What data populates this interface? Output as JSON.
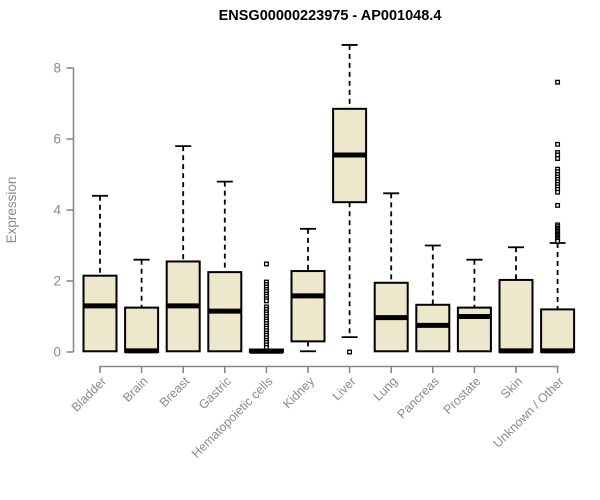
{
  "page": {
    "title": "ENSG00000223975 - AP001048.4"
  },
  "colors": {
    "background": "#FFFFFF",
    "box_fill": "#EDE8CC",
    "box_stroke": "#000000",
    "median_color": "#000000",
    "whisker_color": "#000000",
    "outlier_stroke": "#000000",
    "outlier_fill": "#FFFFFF",
    "axis_color": "#8A8A8A",
    "tick_label_color": "#8A8A8A",
    "title_color": "#000000"
  },
  "chart_data": {
    "type": "boxplot",
    "title": "ENSG00000223975 - AP001048.4",
    "xlabel": "",
    "ylabel": "Expression",
    "ylim": [
      0,
      8
    ],
    "yticks": [
      0,
      2,
      4,
      6,
      8
    ],
    "grid": false,
    "legend": false,
    "categories": [
      {
        "label": "Bladder",
        "q1": 0.02,
        "median": 1.3,
        "q3": 2.15,
        "whisker_low": 0.02,
        "whisker_high": 4.4,
        "outliers": []
      },
      {
        "label": "Brain",
        "q1": 0.0,
        "median": 0.03,
        "q3": 1.25,
        "whisker_low": 0.0,
        "whisker_high": 2.6,
        "outliers": []
      },
      {
        "label": "Breast",
        "q1": 0.02,
        "median": 1.3,
        "q3": 2.55,
        "whisker_low": 0.02,
        "whisker_high": 5.8,
        "outliers": []
      },
      {
        "label": "Gastric",
        "q1": 0.02,
        "median": 1.15,
        "q3": 2.25,
        "whisker_low": 0.02,
        "whisker_high": 4.8,
        "outliers": []
      },
      {
        "label": "Hematopoietic cells",
        "q1": 0.0,
        "median": 0.02,
        "q3": 0.07,
        "whisker_low": 0.0,
        "whisker_high": 0.07,
        "outliers": [
          2.48,
          1.97,
          1.9,
          1.83,
          1.76,
          1.7,
          1.63,
          1.57,
          1.5,
          1.44,
          1.27,
          1.2,
          1.13,
          1.07,
          1.0,
          0.93,
          0.87,
          0.8,
          0.73,
          0.67,
          0.6,
          0.53,
          0.47,
          0.4,
          0.33,
          0.27,
          0.2,
          0.13
        ]
      },
      {
        "label": "Kidney",
        "q1": 0.3,
        "median": 1.58,
        "q3": 2.28,
        "whisker_low": 0.02,
        "whisker_high": 3.47,
        "outliers": []
      },
      {
        "label": "Liver",
        "q1": 4.22,
        "median": 5.55,
        "q3": 6.85,
        "whisker_low": 0.42,
        "whisker_high": 8.65,
        "outliers": [
          0.0
        ]
      },
      {
        "label": "Lung",
        "q1": 0.02,
        "median": 0.97,
        "q3": 1.95,
        "whisker_low": 0.02,
        "whisker_high": 4.47,
        "outliers": []
      },
      {
        "label": "Pancreas",
        "q1": 0.02,
        "median": 0.75,
        "q3": 1.33,
        "whisker_low": 0.02,
        "whisker_high": 3.0,
        "outliers": []
      },
      {
        "label": "Prostate",
        "q1": 0.02,
        "median": 1.0,
        "q3": 1.25,
        "whisker_low": 0.02,
        "whisker_high": 2.6,
        "outliers": []
      },
      {
        "label": "Skin",
        "q1": 0.0,
        "median": 0.03,
        "q3": 2.03,
        "whisker_low": 0.0,
        "whisker_high": 2.95,
        "outliers": []
      },
      {
        "label": "Unknown / Other",
        "q1": 0.0,
        "median": 0.03,
        "q3": 1.2,
        "whisker_low": 0.0,
        "whisker_high": 3.07,
        "outliers": [
          7.6,
          5.85,
          5.62,
          5.55,
          5.45,
          5.15,
          5.08,
          5.0,
          4.93,
          4.86,
          4.79,
          4.72,
          4.65,
          4.58,
          4.5,
          4.13,
          3.58,
          3.53,
          3.48,
          3.44,
          3.4,
          3.36,
          3.32,
          3.28,
          3.24,
          3.2,
          3.16,
          3.12
        ]
      }
    ]
  }
}
